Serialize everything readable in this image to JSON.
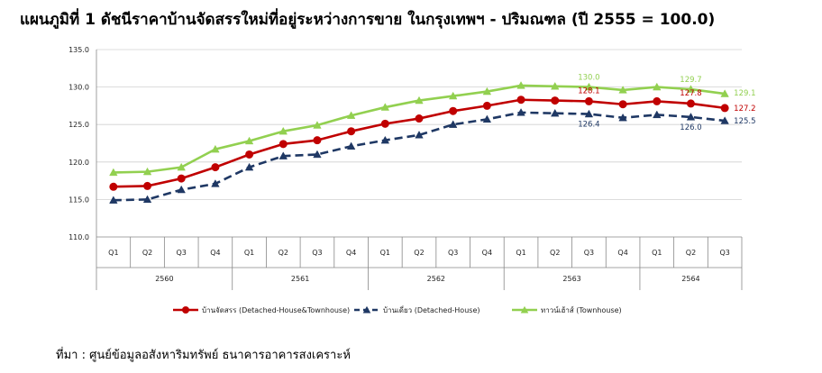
{
  "title": "แผนภูมิที่ 1 ดัชนีราคาบ้านจัดสรรใหม่ที่อยู่ระหว่างการขาย ในกรุงเทพฯ - ปริมณฑล (ปี 2555 = 100.0)",
  "source": "ที่มา : ศูนย์ข้อมูลอสังหาริมทรัพย์ ธนาคารอาคารสงเคราะห์",
  "chart_data": {
    "type": "line",
    "quarters": [
      "Q1",
      "Q2",
      "Q3",
      "Q4",
      "Q1",
      "Q2",
      "Q3",
      "Q4",
      "Q1",
      "Q2",
      "Q3",
      "Q4",
      "Q1",
      "Q2",
      "Q3",
      "Q4",
      "Q1",
      "Q2",
      "Q3"
    ],
    "years": [
      {
        "label": "2560",
        "span": 4
      },
      {
        "label": "2561",
        "span": 4
      },
      {
        "label": "2562",
        "span": 4
      },
      {
        "label": "2563",
        "span": 4
      },
      {
        "label": "2564",
        "span": 3
      }
    ],
    "ylim": [
      110.0,
      135.0
    ],
    "yticks": [
      "110.0",
      "115.0",
      "120.0",
      "125.0",
      "130.0",
      "135.0"
    ],
    "grid": true,
    "legend_position": "bottom",
    "series": [
      {
        "name": "บ้านจัดสรร (Detached-House&Townhouse)",
        "color": "#c00000",
        "dash": "solid",
        "marker": "circle",
        "values": [
          116.7,
          116.8,
          117.8,
          119.3,
          121.0,
          122.4,
          122.9,
          124.1,
          125.1,
          125.8,
          126.8,
          127.5,
          128.3,
          128.2,
          128.1,
          127.7,
          128.1,
          127.8,
          127.2
        ],
        "labels": [
          {
            "index": 14,
            "text": "128.1"
          },
          {
            "index": 17,
            "text": "127.8"
          },
          {
            "index": 18,
            "text": "127.2"
          }
        ]
      },
      {
        "name": "บ้านเดี่ยว (Detached-House)",
        "color": "#1f3864",
        "dash": "dashed",
        "marker": "triangle",
        "values": [
          114.9,
          115.0,
          116.3,
          117.1,
          119.3,
          120.8,
          121.0,
          122.1,
          122.9,
          123.6,
          125.0,
          125.7,
          126.6,
          126.5,
          126.4,
          125.9,
          126.3,
          126.0,
          125.5
        ],
        "labels": [
          {
            "index": 14,
            "text": "126.4"
          },
          {
            "index": 17,
            "text": "126.0"
          },
          {
            "index": 18,
            "text": "125.5"
          }
        ]
      },
      {
        "name": "ทาวน์เฮ้าส์ (Townhouse)",
        "color": "#92d050",
        "dash": "solid",
        "marker": "triangle",
        "values": [
          118.6,
          118.7,
          119.3,
          121.7,
          122.8,
          124.1,
          124.9,
          126.2,
          127.3,
          128.2,
          128.8,
          129.4,
          130.2,
          130.1,
          130.0,
          129.6,
          130.0,
          129.7,
          129.1
        ],
        "labels": [
          {
            "index": 14,
            "text": "130.0"
          },
          {
            "index": 17,
            "text": "129.7"
          },
          {
            "index": 18,
            "text": "129.1"
          }
        ]
      }
    ]
  }
}
